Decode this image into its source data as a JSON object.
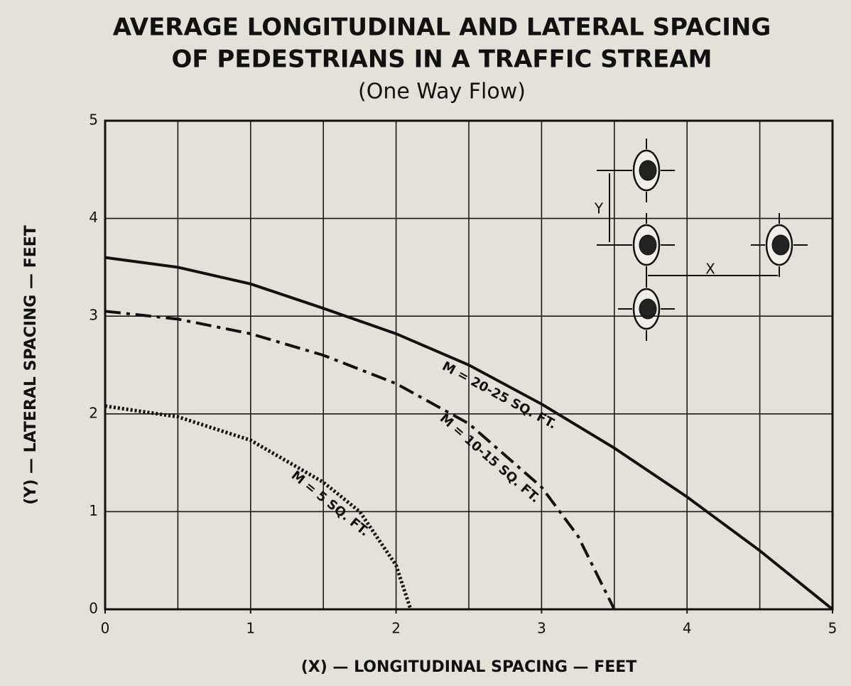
{
  "chart_data": {
    "type": "line",
    "title": [
      "AVERAGE LONGITUDINAL AND LATERAL SPACING",
      "OF PEDESTRIANS IN A TRAFFIC STREAM"
    ],
    "subtitle": "(One Way Flow)",
    "xlabel": "(X) — LONGITUDINAL SPACING — FEET",
    "ylabel": "(Y) — LATERAL SPACING — FEET",
    "xlim": [
      0,
      5
    ],
    "ylim": [
      0,
      5
    ],
    "xticks": [
      0,
      1,
      2,
      3,
      4,
      5
    ],
    "yticks": [
      0,
      1,
      2,
      3,
      4,
      5
    ],
    "x_grid": [
      0.5,
      1,
      1.5,
      2,
      2.5,
      3,
      3.5,
      4,
      4.5
    ],
    "grid": true,
    "annotations": [
      "Y",
      "X"
    ],
    "series": [
      {
        "name": "M = 20-25 SQ. FT.",
        "color": "#111111",
        "style": "solid",
        "x": [
          0,
          0.5,
          1,
          1.5,
          2,
          2.5,
          3,
          3.5,
          4,
          4.5,
          5
        ],
        "values": [
          3.6,
          3.5,
          3.33,
          3.08,
          2.82,
          2.5,
          2.1,
          1.65,
          1.15,
          0.6,
          0
        ]
      },
      {
        "name": "M = 10-15 SQ. FT.",
        "color": "#111111",
        "style": "dashdot",
        "x": [
          0,
          0.5,
          1,
          1.5,
          2,
          2.5,
          3,
          3.25,
          3.5
        ],
        "values": [
          3.05,
          2.97,
          2.82,
          2.6,
          2.31,
          1.9,
          1.25,
          0.75,
          0
        ]
      },
      {
        "name": "M = 5 SQ. FT.",
        "color": "#111111",
        "style": "dotted",
        "x": [
          0,
          0.5,
          1,
          1.5,
          1.75,
          2,
          2.1
        ],
        "values": [
          2.08,
          1.97,
          1.73,
          1.3,
          1.0,
          0.45,
          0
        ]
      }
    ]
  }
}
